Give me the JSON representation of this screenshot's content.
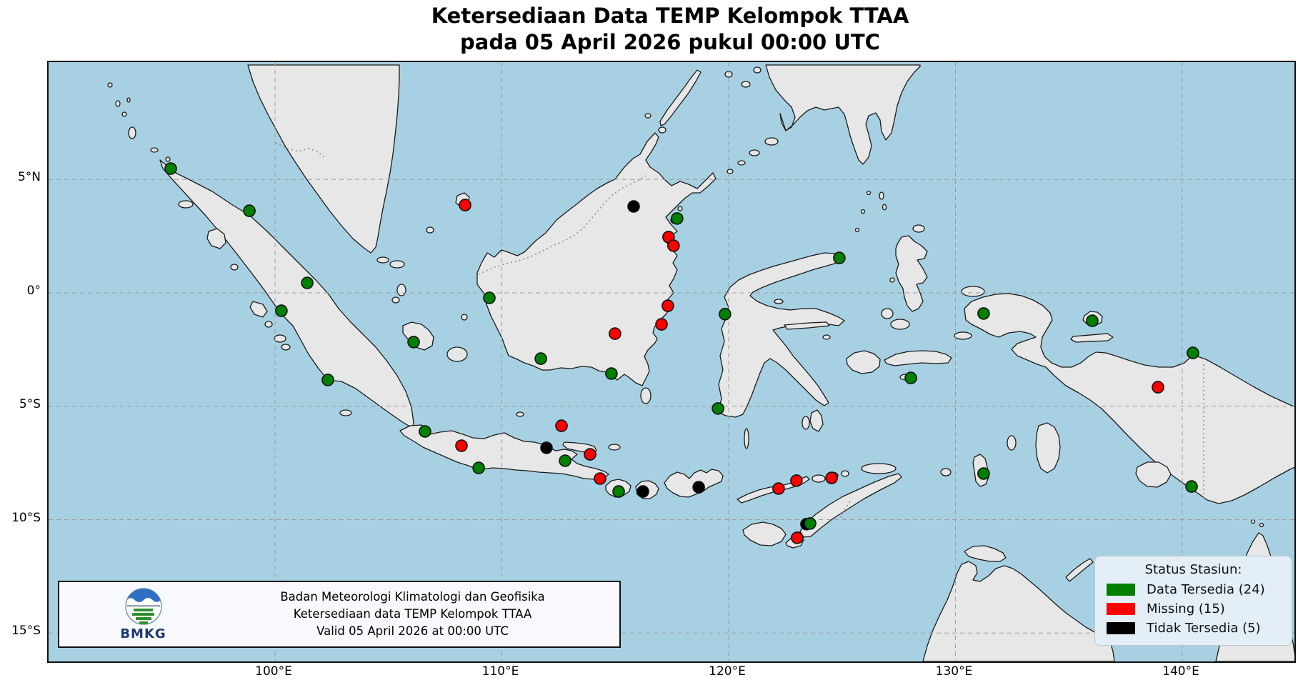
{
  "title": {
    "line1": "Ketersediaan Data TEMP Kelompok TTAA",
    "line2": "pada 05 April 2026 pukul 00:00 UTC"
  },
  "axes": {
    "x_ticks": [
      {
        "label": "100°E",
        "lon": 100
      },
      {
        "label": "110°E",
        "lon": 110
      },
      {
        "label": "120°E",
        "lon": 120
      },
      {
        "label": "130°E",
        "lon": 130
      },
      {
        "label": "140°E",
        "lon": 140
      }
    ],
    "y_ticks": [
      {
        "label": "5°N",
        "lat": 5
      },
      {
        "label": "0°",
        "lat": 0
      },
      {
        "label": "5°S",
        "lat": -5
      },
      {
        "label": "10°S",
        "lat": -10
      },
      {
        "label": "15°S",
        "lat": -15
      }
    ]
  },
  "legend": {
    "title": "Status Stasiun:",
    "items": [
      {
        "label": "Data Tersedia (24)",
        "status": "tersedia",
        "color": "#008000",
        "count": 24
      },
      {
        "label": "Missing (15)",
        "status": "missing",
        "color": "#ff0000",
        "count": 15
      },
      {
        "label": "Tidak Tersedia (5)",
        "status": "tidak_tersedia",
        "color": "#000000",
        "count": 5
      }
    ]
  },
  "info_box": {
    "org": "Badan Meteorologi Klimatologi dan Geofisika",
    "subtitle": "Ketersediaan data TEMP Kelompok TTAA",
    "valid": "Valid 05 April 2026 at 00:00 UTC",
    "logo_label": "BMKG"
  },
  "colors": {
    "ocean": "#a7d1e2",
    "land": "#e7e7e7",
    "coastline": "#1a1a1a",
    "grid": "#9c9c9c",
    "status": {
      "tersedia": "#008000",
      "missing": "#ff0000",
      "tidak_tersedia": "#000000"
    }
  },
  "chart_data": {
    "type": "scatter",
    "title": "Ketersediaan Data TEMP Kelompok TTAA pada 05 April 2026 pukul 00:00 UTC",
    "map_extent": {
      "lon_min": 90.0,
      "lon_max": 144.95,
      "lat_min": -16.25,
      "lat_max": 10.17
    },
    "grid": true,
    "status_counts": {
      "tersedia": 24,
      "missing": 15,
      "tidak_tersedia": 5
    },
    "stations": [
      {
        "lon": 115.81,
        "lat": 3.81,
        "status": "tidak_tersedia"
      },
      {
        "lon": 111.97,
        "lat": -6.83,
        "status": "tidak_tersedia"
      },
      {
        "lon": 116.22,
        "lat": -8.76,
        "status": "tidak_tersedia"
      },
      {
        "lon": 118.68,
        "lat": -8.57,
        "status": "tidak_tersedia"
      },
      {
        "lon": 123.43,
        "lat": -10.2,
        "status": "tidak_tersedia"
      },
      {
        "lon": 108.38,
        "lat": 3.87,
        "status": "missing"
      },
      {
        "lon": 117.35,
        "lat": 2.46,
        "status": "missing"
      },
      {
        "lon": 117.57,
        "lat": 2.08,
        "status": "missing"
      },
      {
        "lon": 117.32,
        "lat": -0.57,
        "status": "missing"
      },
      {
        "lon": 117.04,
        "lat": -1.39,
        "status": "missing"
      },
      {
        "lon": 114.99,
        "lat": -1.8,
        "status": "missing"
      },
      {
        "lon": 108.22,
        "lat": -6.74,
        "status": "missing"
      },
      {
        "lon": 112.63,
        "lat": -5.86,
        "status": "missing"
      },
      {
        "lon": 113.89,
        "lat": -7.12,
        "status": "missing"
      },
      {
        "lon": 114.33,
        "lat": -8.19,
        "status": "missing"
      },
      {
        "lon": 122.2,
        "lat": -8.63,
        "status": "missing"
      },
      {
        "lon": 122.99,
        "lat": -8.28,
        "status": "missing"
      },
      {
        "lon": 124.54,
        "lat": -8.16,
        "status": "missing"
      },
      {
        "lon": 123.02,
        "lat": -10.8,
        "status": "missing"
      },
      {
        "lon": 138.93,
        "lat": -4.16,
        "status": "missing"
      },
      {
        "lon": 95.4,
        "lat": 5.48,
        "status": "tersedia"
      },
      {
        "lon": 98.87,
        "lat": 3.62,
        "status": "tersedia"
      },
      {
        "lon": 101.42,
        "lat": 0.44,
        "status": "tersedia"
      },
      {
        "lon": 100.28,
        "lat": -0.79,
        "status": "tersedia"
      },
      {
        "lon": 102.33,
        "lat": -3.84,
        "status": "tersedia"
      },
      {
        "lon": 106.11,
        "lat": -2.17,
        "status": "tersedia"
      },
      {
        "lon": 106.61,
        "lat": -6.11,
        "status": "tersedia"
      },
      {
        "lon": 108.98,
        "lat": -7.72,
        "status": "tersedia"
      },
      {
        "lon": 112.79,
        "lat": -7.4,
        "status": "tersedia"
      },
      {
        "lon": 115.15,
        "lat": -8.76,
        "status": "tersedia"
      },
      {
        "lon": 119.53,
        "lat": -5.1,
        "status": "tersedia"
      },
      {
        "lon": 109.45,
        "lat": -0.22,
        "status": "tersedia"
      },
      {
        "lon": 111.72,
        "lat": -2.9,
        "status": "tersedia"
      },
      {
        "lon": 114.83,
        "lat": -3.56,
        "status": "tersedia"
      },
      {
        "lon": 117.73,
        "lat": 3.28,
        "status": "tersedia"
      },
      {
        "lon": 119.84,
        "lat": -0.94,
        "status": "tersedia"
      },
      {
        "lon": 124.88,
        "lat": 1.54,
        "status": "tersedia"
      },
      {
        "lon": 128.03,
        "lat": -3.75,
        "status": "tersedia"
      },
      {
        "lon": 131.24,
        "lat": -0.91,
        "status": "tersedia"
      },
      {
        "lon": 136.03,
        "lat": -1.23,
        "status": "tersedia"
      },
      {
        "lon": 140.47,
        "lat": -2.65,
        "status": "tersedia"
      },
      {
        "lon": 140.41,
        "lat": -8.54,
        "status": "tersedia"
      },
      {
        "lon": 123.59,
        "lat": -10.17,
        "status": "tersedia"
      },
      {
        "lon": 131.24,
        "lat": -7.97,
        "status": "tersedia"
      }
    ]
  }
}
